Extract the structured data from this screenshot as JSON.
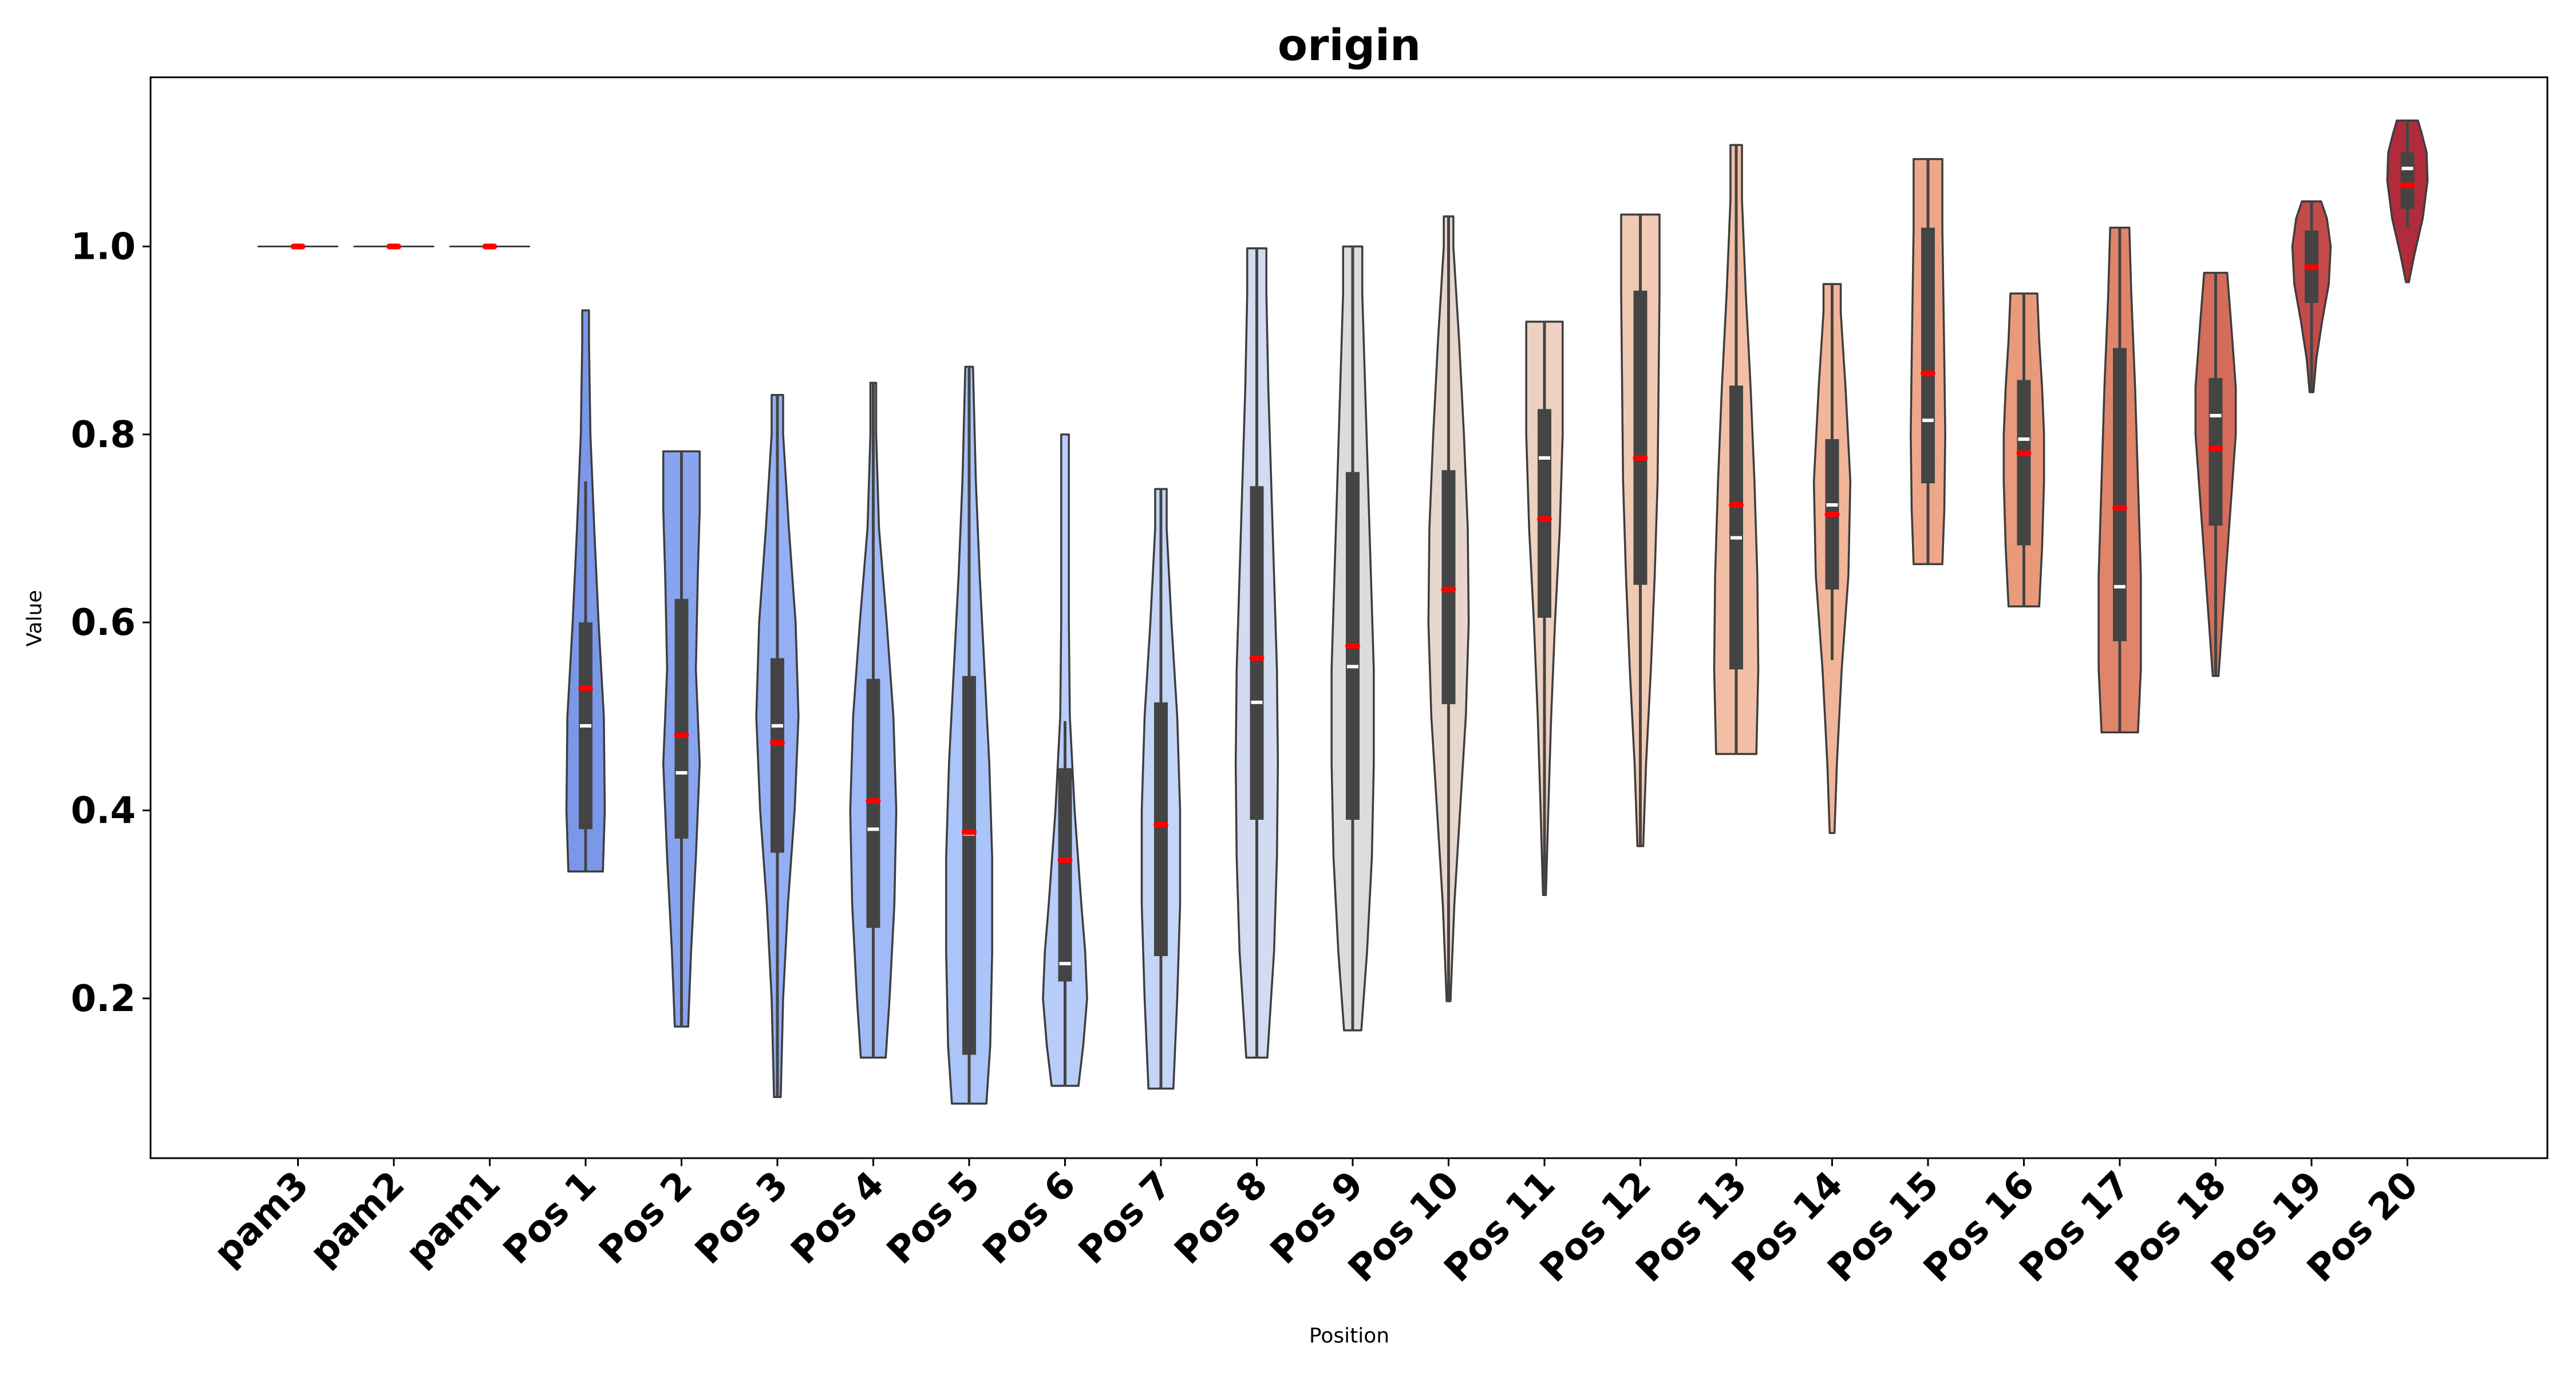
{
  "chart_data": {
    "type": "violin",
    "title": "origin",
    "xlabel": "Position",
    "ylabel": "Value",
    "ylim": [
      0.03,
      1.18
    ],
    "yticks": [
      "0.2",
      "0.4",
      "0.6",
      "0.8",
      "1.0"
    ],
    "ytick_values": [
      0.2,
      0.4,
      0.6,
      0.8,
      1.0
    ],
    "grid": false,
    "legend": "none",
    "mean_color": "#ff0000",
    "median_color": "#ffffff",
    "box_color": "#444444",
    "outline_color": "#3d3d3d",
    "categories": [
      "pam3",
      "pam2",
      "pam1",
      "Pos 1",
      "Pos 2",
      "Pos 3",
      "Pos 4",
      "Pos 5",
      "Pos 6",
      "Pos 7",
      "Pos 8",
      "Pos 9",
      "Pos 10",
      "Pos 11",
      "Pos 12",
      "Pos 13",
      "Pos 14",
      "Pos 15",
      "Pos 16",
      "Pos 17",
      "Pos 18",
      "Pos 19",
      "Pos 20"
    ],
    "series": [
      {
        "label": "pam3",
        "color": "#4a5fc9",
        "min": 1.0,
        "max": 1.0,
        "q1": 1.0,
        "q3": 1.0,
        "median": 1.0,
        "mean": 1.0,
        "whisker_lo": 1.0,
        "whisker_hi": 1.0,
        "width": [
          [
            1.0,
            0.42
          ]
        ]
      },
      {
        "label": "pam2",
        "color": "#4d64cc",
        "min": 1.0,
        "max": 1.0,
        "q1": 1.0,
        "q3": 1.0,
        "median": 1.0,
        "mean": 1.0,
        "whisker_lo": 1.0,
        "whisker_hi": 1.0,
        "width": [
          [
            1.0,
            0.42
          ]
        ]
      },
      {
        "label": "pam1",
        "color": "#5a70d2",
        "min": 1.0,
        "max": 1.0,
        "q1": 1.0,
        "q3": 1.0,
        "median": 1.0,
        "mean": 1.0,
        "whisker_lo": 1.0,
        "whisker_hi": 1.0,
        "width": [
          [
            1.0,
            0.42
          ]
        ]
      },
      {
        "label": "Pos 1",
        "color": "#7b97e8",
        "min": 0.335,
        "max": 0.932,
        "q1": 0.38,
        "q3": 0.6,
        "median": 0.49,
        "mean": 0.53,
        "whisker_lo": 0.335,
        "whisker_hi": 0.75,
        "width": [
          [
            0.335,
            0.36
          ],
          [
            0.4,
            0.4
          ],
          [
            0.5,
            0.38
          ],
          [
            0.6,
            0.27
          ],
          [
            0.7,
            0.18
          ],
          [
            0.8,
            0.1
          ],
          [
            0.9,
            0.07
          ],
          [
            0.932,
            0.07
          ]
        ]
      },
      {
        "label": "Pos 2",
        "color": "#88a4ef",
        "min": 0.17,
        "max": 0.782,
        "q1": 0.37,
        "q3": 0.625,
        "median": 0.44,
        "mean": 0.48,
        "whisker_lo": 0.17,
        "whisker_hi": 0.782,
        "width": [
          [
            0.17,
            0.14
          ],
          [
            0.25,
            0.2
          ],
          [
            0.35,
            0.3
          ],
          [
            0.45,
            0.38
          ],
          [
            0.55,
            0.3
          ],
          [
            0.65,
            0.34
          ],
          [
            0.72,
            0.38
          ],
          [
            0.782,
            0.38
          ]
        ]
      },
      {
        "label": "Pos 3",
        "color": "#94aff4",
        "min": 0.095,
        "max": 0.842,
        "q1": 0.355,
        "q3": 0.562,
        "median": 0.49,
        "mean": 0.472,
        "whisker_lo": 0.095,
        "whisker_hi": 0.842,
        "width": [
          [
            0.095,
            0.07
          ],
          [
            0.2,
            0.12
          ],
          [
            0.3,
            0.22
          ],
          [
            0.4,
            0.36
          ],
          [
            0.5,
            0.44
          ],
          [
            0.6,
            0.38
          ],
          [
            0.7,
            0.24
          ],
          [
            0.8,
            0.12
          ],
          [
            0.842,
            0.12
          ]
        ]
      },
      {
        "label": "Pos 4",
        "color": "#a0baf7",
        "min": 0.137,
        "max": 0.855,
        "q1": 0.275,
        "q3": 0.54,
        "median": 0.38,
        "mean": 0.41,
        "whisker_lo": 0.137,
        "whisker_hi": 0.855,
        "width": [
          [
            0.137,
            0.26
          ],
          [
            0.2,
            0.34
          ],
          [
            0.3,
            0.44
          ],
          [
            0.4,
            0.48
          ],
          [
            0.5,
            0.42
          ],
          [
            0.6,
            0.28
          ],
          [
            0.7,
            0.12
          ],
          [
            0.8,
            0.06
          ],
          [
            0.855,
            0.06
          ]
        ]
      },
      {
        "label": "Pos 5",
        "color": "#abc4f9",
        "min": 0.088,
        "max": 0.872,
        "q1": 0.14,
        "q3": 0.543,
        "median": 0.375,
        "mean": 0.377,
        "whisker_lo": 0.088,
        "whisker_hi": 0.872,
        "width": [
          [
            0.088,
            0.36
          ],
          [
            0.15,
            0.44
          ],
          [
            0.25,
            0.48
          ],
          [
            0.35,
            0.48
          ],
          [
            0.45,
            0.42
          ],
          [
            0.55,
            0.32
          ],
          [
            0.65,
            0.22
          ],
          [
            0.75,
            0.14
          ],
          [
            0.872,
            0.08
          ]
        ]
      },
      {
        "label": "Pos 6",
        "color": "#b8cdfa",
        "min": 0.107,
        "max": 0.8,
        "q1": 0.218,
        "q3": 0.445,
        "median": 0.237,
        "mean": 0.347,
        "whisker_lo": 0.107,
        "whisker_hi": 0.495,
        "width": [
          [
            0.107,
            0.28
          ],
          [
            0.15,
            0.38
          ],
          [
            0.2,
            0.46
          ],
          [
            0.25,
            0.42
          ],
          [
            0.3,
            0.34
          ],
          [
            0.4,
            0.2
          ],
          [
            0.5,
            0.1
          ],
          [
            0.6,
            0.08
          ],
          [
            0.7,
            0.08
          ],
          [
            0.8,
            0.08
          ]
        ]
      },
      {
        "label": "Pos 7",
        "color": "#c5d5f8",
        "min": 0.104,
        "max": 0.742,
        "q1": 0.245,
        "q3": 0.515,
        "median": 0.385,
        "mean": 0.385,
        "whisker_lo": 0.104,
        "whisker_hi": 0.742,
        "width": [
          [
            0.104,
            0.26
          ],
          [
            0.2,
            0.34
          ],
          [
            0.3,
            0.4
          ],
          [
            0.4,
            0.4
          ],
          [
            0.5,
            0.34
          ],
          [
            0.6,
            0.22
          ],
          [
            0.7,
            0.12
          ],
          [
            0.742,
            0.12
          ]
        ]
      },
      {
        "label": "Pos 8",
        "color": "#d2dbef",
        "min": 0.137,
        "max": 0.998,
        "q1": 0.39,
        "q3": 0.745,
        "median": 0.515,
        "mean": 0.562,
        "whisker_lo": 0.137,
        "whisker_hi": 0.998,
        "width": [
          [
            0.137,
            0.22
          ],
          [
            0.25,
            0.36
          ],
          [
            0.35,
            0.42
          ],
          [
            0.45,
            0.44
          ],
          [
            0.55,
            0.42
          ],
          [
            0.65,
            0.36
          ],
          [
            0.75,
            0.3
          ],
          [
            0.85,
            0.24
          ],
          [
            0.95,
            0.2
          ],
          [
            0.998,
            0.2
          ]
        ]
      },
      {
        "label": "Pos 9",
        "color": "#dcdcdc",
        "min": 0.166,
        "max": 1.0,
        "q1": 0.39,
        "q3": 0.76,
        "median": 0.553,
        "mean": 0.575,
        "whisker_lo": 0.166,
        "whisker_hi": 1.0,
        "width": [
          [
            0.166,
            0.18
          ],
          [
            0.25,
            0.3
          ],
          [
            0.35,
            0.4
          ],
          [
            0.45,
            0.44
          ],
          [
            0.55,
            0.44
          ],
          [
            0.65,
            0.38
          ],
          [
            0.75,
            0.32
          ],
          [
            0.85,
            0.26
          ],
          [
            0.95,
            0.2
          ],
          [
            1.0,
            0.2
          ]
        ]
      },
      {
        "label": "Pos 10",
        "color": "#e7d6cc",
        "min": 0.197,
        "max": 1.032,
        "q1": 0.513,
        "q3": 0.762,
        "median": 0.635,
        "mean": 0.635,
        "whisker_lo": 0.197,
        "whisker_hi": 1.032,
        "width": [
          [
            0.197,
            0.04
          ],
          [
            0.3,
            0.12
          ],
          [
            0.4,
            0.24
          ],
          [
            0.5,
            0.36
          ],
          [
            0.6,
            0.42
          ],
          [
            0.7,
            0.4
          ],
          [
            0.8,
            0.32
          ],
          [
            0.9,
            0.22
          ],
          [
            1.0,
            0.1
          ],
          [
            1.032,
            0.1
          ]
        ]
      },
      {
        "label": "Pos 11",
        "color": "#edd1c1",
        "min": 0.31,
        "max": 0.92,
        "q1": 0.605,
        "q3": 0.827,
        "median": 0.775,
        "mean": 0.71,
        "whisker_lo": 0.31,
        "whisker_hi": 0.92,
        "width": [
          [
            0.31,
            0.03
          ],
          [
            0.4,
            0.08
          ],
          [
            0.5,
            0.14
          ],
          [
            0.6,
            0.22
          ],
          [
            0.7,
            0.32
          ],
          [
            0.8,
            0.38
          ],
          [
            0.88,
            0.38
          ],
          [
            0.92,
            0.38
          ]
        ]
      },
      {
        "label": "Pos 12",
        "color": "#f1c9b5",
        "min": 0.362,
        "max": 1.034,
        "q1": 0.64,
        "q3": 0.953,
        "median": 0.775,
        "mean": 0.775,
        "whisker_lo": 0.362,
        "whisker_hi": 1.034,
        "width": [
          [
            0.362,
            0.06
          ],
          [
            0.45,
            0.12
          ],
          [
            0.55,
            0.22
          ],
          [
            0.65,
            0.3
          ],
          [
            0.75,
            0.36
          ],
          [
            0.85,
            0.38
          ],
          [
            0.95,
            0.4
          ],
          [
            1.034,
            0.4
          ]
        ]
      },
      {
        "label": "Pos 13",
        "color": "#f2bfa6",
        "min": 0.46,
        "max": 1.108,
        "q1": 0.55,
        "q3": 0.852,
        "median": 0.69,
        "mean": 0.725,
        "whisker_lo": 0.46,
        "whisker_hi": 1.108,
        "width": [
          [
            0.46,
            0.42
          ],
          [
            0.55,
            0.46
          ],
          [
            0.65,
            0.44
          ],
          [
            0.75,
            0.38
          ],
          [
            0.85,
            0.3
          ],
          [
            0.95,
            0.2
          ],
          [
            1.05,
            0.12
          ],
          [
            1.108,
            0.12
          ]
        ]
      },
      {
        "label": "Pos 14",
        "color": "#f1b59a",
        "min": 0.376,
        "max": 0.96,
        "q1": 0.635,
        "q3": 0.795,
        "median": 0.725,
        "mean": 0.715,
        "whisker_lo": 0.56,
        "whisker_hi": 0.96,
        "width": [
          [
            0.376,
            0.05
          ],
          [
            0.45,
            0.1
          ],
          [
            0.55,
            0.2
          ],
          [
            0.65,
            0.34
          ],
          [
            0.75,
            0.38
          ],
          [
            0.85,
            0.28
          ],
          [
            0.93,
            0.18
          ],
          [
            0.96,
            0.18
          ]
        ]
      },
      {
        "label": "Pos 15",
        "color": "#eea889",
        "min": 0.662,
        "max": 1.093,
        "q1": 0.748,
        "q3": 1.02,
        "median": 0.815,
        "mean": 0.865,
        "whisker_lo": 0.662,
        "whisker_hi": 1.093,
        "width": [
          [
            0.662,
            0.3
          ],
          [
            0.72,
            0.34
          ],
          [
            0.8,
            0.36
          ],
          [
            0.88,
            0.34
          ],
          [
            0.95,
            0.32
          ],
          [
            1.02,
            0.3
          ],
          [
            1.093,
            0.3
          ]
        ]
      },
      {
        "label": "Pos 16",
        "color": "#e89a7b",
        "min": 0.617,
        "max": 0.95,
        "q1": 0.682,
        "q3": 0.858,
        "median": 0.795,
        "mean": 0.78,
        "whisker_lo": 0.617,
        "whisker_hi": 0.95,
        "width": [
          [
            0.617,
            0.32
          ],
          [
            0.68,
            0.38
          ],
          [
            0.75,
            0.42
          ],
          [
            0.8,
            0.42
          ],
          [
            0.85,
            0.38
          ],
          [
            0.9,
            0.32
          ],
          [
            0.95,
            0.28
          ]
        ]
      },
      {
        "label": "Pos 17",
        "color": "#e0856a",
        "min": 0.483,
        "max": 1.02,
        "q1": 0.58,
        "q3": 0.892,
        "median": 0.638,
        "mean": 0.722,
        "whisker_lo": 0.483,
        "whisker_hi": 1.02,
        "width": [
          [
            0.483,
            0.38
          ],
          [
            0.55,
            0.44
          ],
          [
            0.65,
            0.44
          ],
          [
            0.75,
            0.38
          ],
          [
            0.85,
            0.32
          ],
          [
            0.95,
            0.24
          ],
          [
            1.02,
            0.2
          ]
        ]
      },
      {
        "label": "Pos 18",
        "color": "#d46d5b",
        "min": 0.543,
        "max": 0.972,
        "q1": 0.703,
        "q3": 0.86,
        "median": 0.82,
        "mean": 0.785,
        "whisker_lo": 0.543,
        "whisker_hi": 0.972,
        "width": [
          [
            0.543,
            0.06
          ],
          [
            0.6,
            0.14
          ],
          [
            0.7,
            0.28
          ],
          [
            0.8,
            0.42
          ],
          [
            0.85,
            0.42
          ],
          [
            0.92,
            0.32
          ],
          [
            0.972,
            0.24
          ]
        ]
      },
      {
        "label": "Pos 19",
        "color": "#c24b49",
        "min": 0.845,
        "max": 1.048,
        "q1": 0.94,
        "q3": 1.017,
        "median": 0.978,
        "mean": 0.978,
        "whisker_lo": 0.845,
        "whisker_hi": 1.048,
        "width": [
          [
            0.845,
            0.04
          ],
          [
            0.88,
            0.1
          ],
          [
            0.92,
            0.22
          ],
          [
            0.96,
            0.36
          ],
          [
            1.0,
            0.4
          ],
          [
            1.03,
            0.32
          ],
          [
            1.048,
            0.2
          ]
        ]
      },
      {
        "label": "Pos 20",
        "color": "#b02c3b",
        "min": 0.962,
        "max": 1.134,
        "q1": 1.04,
        "q3": 1.1,
        "median": 1.083,
        "mean": 1.065,
        "whisker_lo": 1.02,
        "whisker_hi": 1.134,
        "width": [
          [
            0.962,
            0.03
          ],
          [
            0.99,
            0.14
          ],
          [
            1.03,
            0.32
          ],
          [
            1.07,
            0.42
          ],
          [
            1.1,
            0.4
          ],
          [
            1.12,
            0.3
          ],
          [
            1.134,
            0.22
          ]
        ]
      }
    ]
  }
}
